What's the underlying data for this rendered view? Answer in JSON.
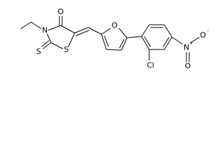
{
  "nodes": [
    {
      "label": "O"
    },
    {
      "label": "N"
    },
    {
      "label": "S"
    },
    {
      "label": "S"
    },
    {
      "label": "O"
    },
    {
      "label": "Cl"
    },
    {
      "label": "N"
    },
    {
      "label": "+"
    },
    {
      "label": "O"
    },
    {
      "label": "-"
    },
    {
      "label": "O"
    }
  ]
}
